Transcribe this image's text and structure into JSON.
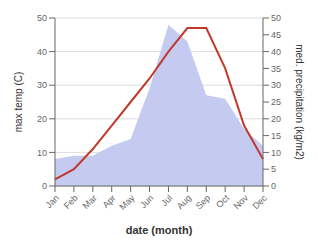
{
  "chart_data": {
    "type": "line",
    "xlabel": "date (month)",
    "ylabel": "max temp (C)",
    "y2label": "med. precipitation (kg/m2)",
    "categories": [
      "Jan",
      "Feb",
      "Mar",
      "Apr",
      "May",
      "Jun",
      "Jul",
      "Aug",
      "Sep",
      "Oct",
      "Nov",
      "Dec"
    ],
    "series": [
      {
        "type": "area",
        "color": "#c5caf0",
        "axis": "y2",
        "values": [
          8,
          9,
          9,
          12,
          14,
          29,
          48,
          43,
          27,
          26,
          17,
          12
        ]
      },
      {
        "type": "line",
        "color": "#c0392b",
        "values": [
          2,
          5,
          11,
          18,
          25,
          32,
          40,
          47,
          47,
          35,
          18,
          8
        ]
      }
    ],
    "ylim": [
      0,
      50
    ],
    "yticks": [
      0,
      10,
      20,
      30,
      40,
      50
    ],
    "y2lim": [
      0,
      50
    ],
    "y2ticks": [
      0,
      5,
      10,
      15,
      20,
      25,
      30,
      35,
      40,
      45,
      50
    ],
    "grid": true
  }
}
